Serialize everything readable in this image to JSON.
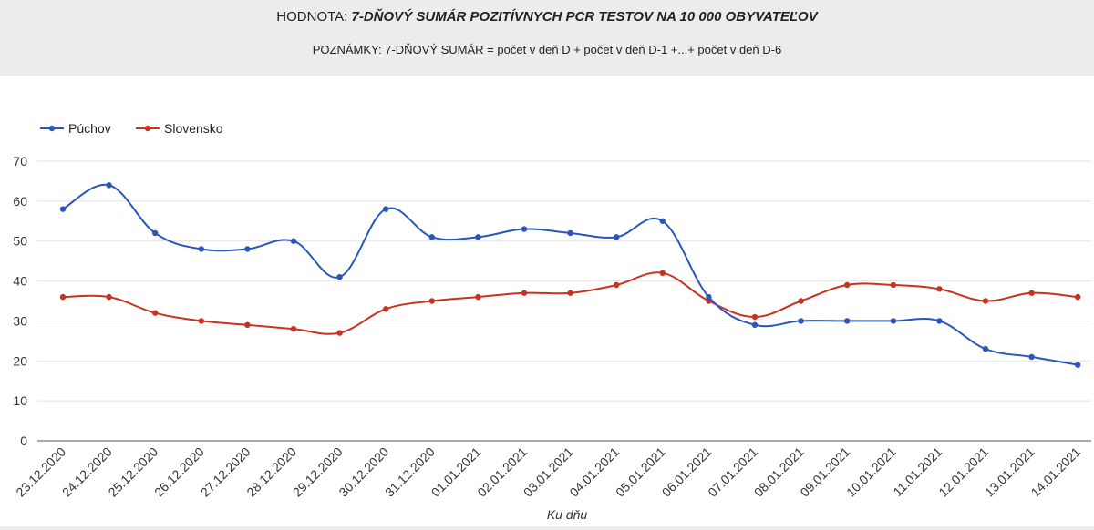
{
  "header": {
    "title_prefix": "HODNOTA:",
    "title_main": "7-DŇOVÝ SUMÁR POZITÍVNYCH PCR TESTOV NA 10 000 OBYVATEĽOV",
    "note": "POZNÁMKY: 7-DŇOVÝ SUMÁR = počet v deň D + počet v deň D-1 +...+ počet v deň D-6"
  },
  "colors": {
    "puchov": "#2a56b8",
    "slovensko": "#c8321f",
    "grid": "#e2e2e2"
  },
  "chart_data": {
    "type": "line",
    "xlabel": "Ku dňu",
    "ylabel": "",
    "ylim": [
      0,
      70
    ],
    "yticks": [
      0,
      10,
      20,
      30,
      40,
      50,
      60,
      70
    ],
    "grid": true,
    "legend_position": "top-left",
    "categories": [
      "23.12.2020",
      "24.12.2020",
      "25.12.2020",
      "26.12.2020",
      "27.12.2020",
      "28.12.2020",
      "29.12.2020",
      "30.12.2020",
      "31.12.2020",
      "01.01.2021",
      "02.01.2021",
      "03.01.2021",
      "04.01.2021",
      "05.01.2021",
      "06.01.2021",
      "07.01.2021",
      "08.01.2021",
      "09.01.2021",
      "10.01.2021",
      "11.01.2021",
      "12.01.2021",
      "13.01.2021",
      "14.01.2021"
    ],
    "series": [
      {
        "name": "Púchov",
        "values": [
          58,
          64,
          52,
          48,
          48,
          50,
          41,
          58,
          51,
          51,
          53,
          52,
          51,
          55,
          36,
          29,
          30,
          30,
          30,
          30,
          23,
          21,
          19
        ]
      },
      {
        "name": "Slovensko",
        "values": [
          36,
          36,
          32,
          30,
          29,
          28,
          27,
          33,
          35,
          36,
          37,
          37,
          39,
          42,
          35,
          31,
          35,
          39,
          39,
          38,
          35,
          37,
          36
        ]
      }
    ]
  }
}
